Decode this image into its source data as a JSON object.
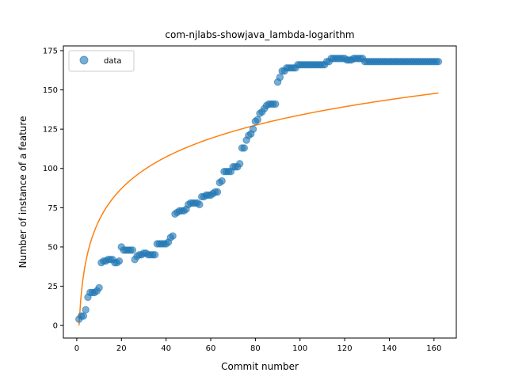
{
  "chart_data": {
    "type": "scatter",
    "title": "com-njlabs-showjava_lambda-logarithm",
    "xlabel": "Commit number",
    "ylabel": "Number of instance of a feature",
    "xlim": [
      -6,
      170
    ],
    "ylim": [
      -8,
      178
    ],
    "xticks": [
      0,
      20,
      40,
      60,
      80,
      100,
      120,
      140,
      160
    ],
    "yticks": [
      0,
      25,
      50,
      75,
      100,
      125,
      150,
      175
    ],
    "grid": false,
    "legend": {
      "position": "top-left",
      "entries": [
        "data"
      ]
    },
    "colors": {
      "data": "#1f77b4",
      "fit": "#ff7f0e"
    },
    "series": [
      {
        "name": "data",
        "kind": "scatter",
        "x": [
          1,
          2,
          3,
          4,
          5,
          6,
          7,
          8,
          9,
          10,
          11,
          12,
          13,
          14,
          15,
          16,
          17,
          18,
          19,
          20,
          21,
          22,
          23,
          24,
          25,
          26,
          27,
          28,
          29,
          30,
          31,
          32,
          33,
          34,
          35,
          36,
          37,
          38,
          39,
          40,
          41,
          42,
          43,
          44,
          45,
          46,
          47,
          48,
          49,
          50,
          51,
          52,
          53,
          54,
          55,
          56,
          57,
          58,
          59,
          60,
          61,
          62,
          63,
          64,
          65,
          66,
          67,
          68,
          69,
          70,
          71,
          72,
          73,
          74,
          75,
          76,
          77,
          78,
          79,
          80,
          81,
          82,
          83,
          84,
          85,
          86,
          87,
          88,
          89,
          90,
          91,
          92,
          93,
          94,
          95,
          96,
          97,
          98,
          99,
          100,
          101,
          102,
          103,
          104,
          105,
          106,
          107,
          108,
          109,
          110,
          111,
          112,
          113,
          114,
          115,
          116,
          117,
          118,
          119,
          120,
          121,
          122,
          123,
          124,
          125,
          126,
          127,
          128,
          129,
          130,
          131,
          132,
          133,
          134,
          135,
          136,
          137,
          138,
          139,
          140,
          141,
          142,
          143,
          144,
          145,
          146,
          147,
          148,
          149,
          150,
          151,
          152,
          153,
          154,
          155,
          156,
          157,
          158,
          159,
          160,
          161,
          162
        ],
        "y": [
          4,
          6,
          6,
          10,
          18,
          21,
          21,
          21,
          22,
          24,
          40,
          41,
          41,
          42,
          42,
          42,
          40,
          40,
          41,
          50,
          48,
          48,
          48,
          48,
          48,
          42,
          44,
          45,
          45,
          46,
          46,
          45,
          45,
          45,
          45,
          52,
          52,
          52,
          52,
          52,
          53,
          56,
          57,
          71,
          72,
          73,
          73,
          73,
          74,
          77,
          78,
          78,
          78,
          78,
          77,
          82,
          82,
          83,
          83,
          83,
          84,
          85,
          85,
          91,
          92,
          98,
          98,
          98,
          98,
          101,
          101,
          101,
          103,
          113,
          113,
          118,
          121,
          122,
          125,
          130,
          131,
          135,
          136,
          138,
          140,
          141,
          141,
          141,
          141,
          155,
          158,
          162,
          162,
          164,
          164,
          164,
          164,
          164,
          166,
          166,
          166,
          166,
          166,
          166,
          166,
          166,
          166,
          166,
          166,
          166,
          166,
          168,
          168,
          170,
          170,
          170,
          170,
          170,
          170,
          170,
          169,
          169,
          169,
          170,
          170,
          170,
          170,
          170,
          168,
          168,
          168,
          168,
          168,
          168,
          168,
          168,
          168,
          168,
          168,
          168,
          168,
          168,
          168,
          168,
          168,
          168,
          168,
          168,
          168,
          168,
          168,
          168,
          168,
          168,
          168,
          168,
          168,
          168,
          168,
          168,
          168,
          168
        ]
      },
      {
        "name": "",
        "kind": "line",
        "model": "a*ln(x)+b",
        "x": [
          1,
          162
        ],
        "y": [
          0,
          148
        ],
        "samples": 200
      }
    ]
  }
}
